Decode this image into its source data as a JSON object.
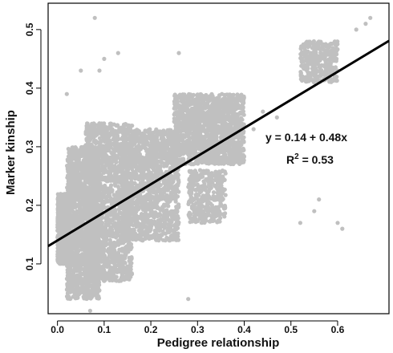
{
  "chart_data": {
    "type": "scatter",
    "xlabel": "Pedigree relationship",
    "ylabel": "Marker kinship",
    "xlim": [
      -0.02,
      0.71
    ],
    "ylim": [
      0.015,
      0.545
    ],
    "xticks": [
      "0.0",
      "0.1",
      "0.2",
      "0.3",
      "0.4",
      "0.5",
      "0.6"
    ],
    "yticks": [
      "0.1",
      "0.2",
      "0.3",
      "0.4",
      "0.5"
    ],
    "point_color": "#c0c0c0",
    "line_color": "#000000",
    "grid": false,
    "regression": {
      "intercept": 0.14,
      "slope": 0.48
    },
    "annotations": {
      "equation": "y = 0.14 + 0.48x",
      "r2_prefix": "R",
      "r2_exp": "2",
      "r2_value": " = 0.53"
    },
    "clusters": [
      {
        "x": [
          0.0,
          0.025
        ],
        "y": [
          0.1,
          0.22
        ],
        "n": 700
      },
      {
        "x": [
          0.02,
          0.09
        ],
        "y": [
          0.04,
          0.3
        ],
        "n": 1600
      },
      {
        "x": [
          0.06,
          0.16
        ],
        "y": [
          0.07,
          0.34
        ],
        "n": 1700
      },
      {
        "x": [
          0.14,
          0.26
        ],
        "y": [
          0.14,
          0.33
        ],
        "n": 1400
      },
      {
        "x": [
          0.25,
          0.4
        ],
        "y": [
          0.27,
          0.39
        ],
        "n": 1500
      },
      {
        "x": [
          0.28,
          0.36
        ],
        "y": [
          0.17,
          0.26
        ],
        "n": 400
      },
      {
        "x": [
          0.52,
          0.6
        ],
        "y": [
          0.41,
          0.48
        ],
        "n": 350
      }
    ],
    "outliers": [
      {
        "x": 0.08,
        "y": 0.52
      },
      {
        "x": 0.13,
        "y": 0.46
      },
      {
        "x": 0.05,
        "y": 0.43
      },
      {
        "x": 0.09,
        "y": 0.43
      },
      {
        "x": 0.02,
        "y": 0.39
      },
      {
        "x": 0.1,
        "y": 0.45
      },
      {
        "x": 0.26,
        "y": 0.46
      },
      {
        "x": 0.52,
        "y": 0.17
      },
      {
        "x": 0.55,
        "y": 0.19
      },
      {
        "x": 0.56,
        "y": 0.21
      },
      {
        "x": 0.6,
        "y": 0.17
      },
      {
        "x": 0.61,
        "y": 0.16
      },
      {
        "x": 0.66,
        "y": 0.51
      },
      {
        "x": 0.67,
        "y": 0.52
      },
      {
        "x": 0.64,
        "y": 0.5
      },
      {
        "x": 0.28,
        "y": 0.04
      },
      {
        "x": 0.07,
        "y": 0.02
      },
      {
        "x": 0.44,
        "y": 0.36
      },
      {
        "x": 0.42,
        "y": 0.33
      },
      {
        "x": 0.47,
        "y": 0.35
      }
    ]
  }
}
